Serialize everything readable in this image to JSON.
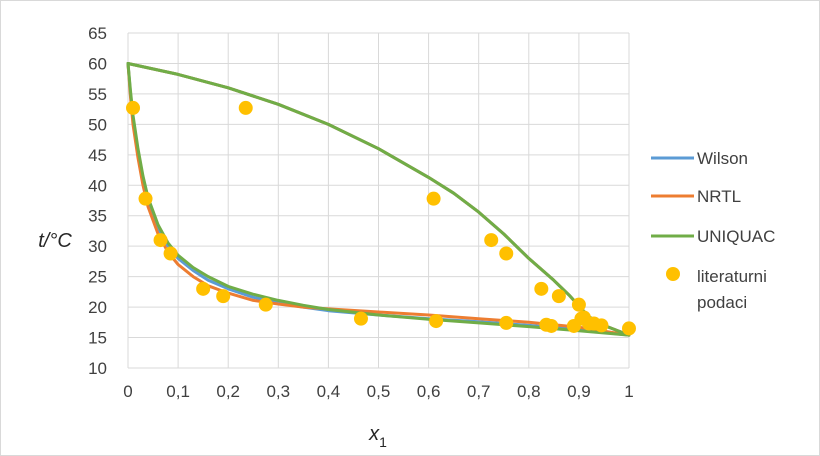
{
  "chart_data": {
    "type": "line",
    "title": "",
    "xlabel": {
      "main": "x",
      "sub": "1"
    },
    "ylabel": "t/°C",
    "xlim": [
      0,
      1
    ],
    "ylim": [
      10,
      65
    ],
    "x_ticks": [
      "0",
      "0,1",
      "0,2",
      "0,3",
      "0,4",
      "0,5",
      "0,6",
      "0,7",
      "0,8",
      "0,9",
      "1"
    ],
    "y_ticks": [
      "10",
      "15",
      "20",
      "25",
      "30",
      "35",
      "40",
      "45",
      "50",
      "55",
      "60",
      "65"
    ],
    "grid": true,
    "legend_position": "right",
    "series": [
      {
        "name": "Wilson",
        "color": "#5b9bd5",
        "kind": "line",
        "segments": [
          [
            [
              0,
              60
            ],
            [
              0.005,
              55
            ],
            [
              0.01,
              51
            ],
            [
              0.02,
              45.5
            ],
            [
              0.03,
              41
            ],
            [
              0.04,
              37.5
            ],
            [
              0.06,
              33
            ],
            [
              0.08,
              30
            ],
            [
              0.1,
              28
            ],
            [
              0.13,
              26
            ],
            [
              0.16,
              24.4
            ],
            [
              0.2,
              23
            ],
            [
              0.25,
              21.6
            ],
            [
              0.3,
              20.7
            ],
            [
              0.35,
              20
            ],
            [
              0.4,
              19.4
            ],
            [
              0.5,
              18.7
            ],
            [
              0.6,
              18.1
            ],
            [
              0.7,
              17.6
            ],
            [
              0.8,
              17
            ],
            [
              0.9,
              16.3
            ],
            [
              1.0,
              15.4
            ]
          ],
          [
            [
              0,
              60
            ],
            [
              0.1,
              58.2
            ],
            [
              0.2,
              56
            ],
            [
              0.3,
              53.3
            ],
            [
              0.4,
              50
            ],
            [
              0.5,
              46
            ],
            [
              0.6,
              41.3
            ],
            [
              0.65,
              38.7
            ],
            [
              0.7,
              35.6
            ],
            [
              0.75,
              32
            ],
            [
              0.8,
              28
            ],
            [
              0.85,
              24.4
            ],
            [
              0.88,
              22
            ],
            [
              0.9,
              20.2
            ],
            [
              0.92,
              18.4
            ],
            [
              0.95,
              17
            ],
            [
              1.0,
              15.4
            ]
          ]
        ]
      },
      {
        "name": "NRTL",
        "color": "#ed7d31",
        "kind": "line",
        "segments": [
          [
            [
              0,
              60
            ],
            [
              0.005,
              54.5
            ],
            [
              0.01,
              50
            ],
            [
              0.02,
              44.5
            ],
            [
              0.03,
              40
            ],
            [
              0.04,
              36.5
            ],
            [
              0.06,
              32
            ],
            [
              0.08,
              29
            ],
            [
              0.1,
              27
            ],
            [
              0.13,
              25
            ],
            [
              0.16,
              23.5
            ],
            [
              0.2,
              22.3
            ],
            [
              0.25,
              21.1
            ],
            [
              0.3,
              20.5
            ],
            [
              0.35,
              20
            ],
            [
              0.4,
              19.7
            ],
            [
              0.5,
              19.2
            ],
            [
              0.6,
              18.7
            ],
            [
              0.7,
              18.1
            ],
            [
              0.8,
              17.5
            ],
            [
              0.9,
              16.7
            ],
            [
              1.0,
              15.4
            ]
          ],
          [
            [
              0,
              60
            ],
            [
              0.1,
              58.2
            ],
            [
              0.2,
              56
            ],
            [
              0.3,
              53.3
            ],
            [
              0.4,
              50
            ],
            [
              0.5,
              46
            ],
            [
              0.6,
              41.3
            ],
            [
              0.65,
              38.7
            ],
            [
              0.7,
              35.6
            ],
            [
              0.75,
              32
            ],
            [
              0.8,
              28
            ],
            [
              0.85,
              24.4
            ],
            [
              0.88,
              22
            ],
            [
              0.9,
              20.2
            ],
            [
              0.92,
              18.4
            ],
            [
              0.95,
              17
            ],
            [
              1.0,
              15.4
            ]
          ]
        ]
      },
      {
        "name": "UNIQUAC",
        "color": "#70ad47",
        "kind": "line",
        "segments": [
          [
            [
              0,
              60
            ],
            [
              0.005,
              55.5
            ],
            [
              0.01,
              51.5
            ],
            [
              0.02,
              46
            ],
            [
              0.03,
              41.5
            ],
            [
              0.04,
              38
            ],
            [
              0.06,
              33.5
            ],
            [
              0.08,
              30.5
            ],
            [
              0.1,
              28.5
            ],
            [
              0.13,
              26.5
            ],
            [
              0.16,
              25
            ],
            [
              0.2,
              23.4
            ],
            [
              0.25,
              22.1
            ],
            [
              0.3,
              21.1
            ],
            [
              0.35,
              20.3
            ],
            [
              0.4,
              19.6
            ],
            [
              0.5,
              18.7
            ],
            [
              0.6,
              18
            ],
            [
              0.7,
              17.4
            ],
            [
              0.8,
              16.8
            ],
            [
              0.9,
              16.1
            ],
            [
              1.0,
              15.4
            ]
          ],
          [
            [
              0,
              60
            ],
            [
              0.1,
              58.2
            ],
            [
              0.2,
              56
            ],
            [
              0.3,
              53.3
            ],
            [
              0.4,
              50
            ],
            [
              0.5,
              46
            ],
            [
              0.6,
              41.3
            ],
            [
              0.65,
              38.7
            ],
            [
              0.7,
              35.6
            ],
            [
              0.75,
              32
            ],
            [
              0.8,
              28
            ],
            [
              0.85,
              24.4
            ],
            [
              0.88,
              22
            ],
            [
              0.9,
              20.2
            ],
            [
              0.92,
              18.4
            ],
            [
              0.95,
              17
            ],
            [
              1.0,
              15.4
            ]
          ]
        ]
      },
      {
        "name": "literaturni podaci",
        "color": "#ffc000",
        "kind": "scatter",
        "points": [
          [
            0.01,
            52.7
          ],
          [
            0.035,
            37.8
          ],
          [
            0.065,
            31
          ],
          [
            0.085,
            28.8
          ],
          [
            0.15,
            23
          ],
          [
            0.19,
            21.8
          ],
          [
            0.275,
            20.4
          ],
          [
            0.465,
            18.1
          ],
          [
            0.615,
            17.7
          ],
          [
            0.755,
            17.4
          ],
          [
            0.835,
            17.1
          ],
          [
            0.845,
            16.9
          ],
          [
            0.89,
            16.9
          ],
          [
            0.905,
            18.1
          ],
          [
            0.92,
            17.3
          ],
          [
            0.945,
            17
          ],
          [
            1.0,
            16.5
          ],
          [
            0.235,
            52.7
          ],
          [
            0.61,
            37.8
          ],
          [
            0.725,
            31
          ],
          [
            0.755,
            28.8
          ],
          [
            0.825,
            23
          ],
          [
            0.86,
            21.8
          ],
          [
            0.9,
            20.4
          ],
          [
            0.91,
            18.3
          ],
          [
            0.93,
            17.3
          ]
        ]
      }
    ]
  }
}
